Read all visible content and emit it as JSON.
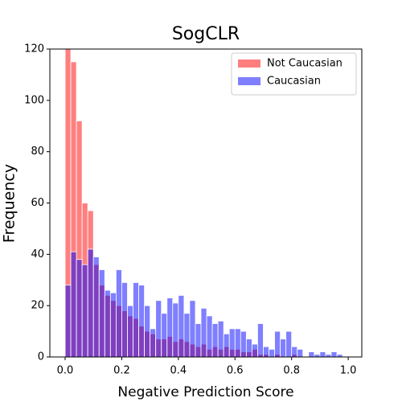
{
  "chart_data": {
    "type": "histogram",
    "title": "SogCLR",
    "xlabel": "Negative Prediction Score",
    "ylabel": "Frequency",
    "bins": [
      0,
      0.02,
      0.04,
      0.06,
      0.08,
      0.1,
      0.12,
      0.14,
      0.16,
      0.18,
      0.2,
      0.22,
      0.24,
      0.26,
      0.28,
      0.3,
      0.32,
      0.34,
      0.36,
      0.38,
      0.4,
      0.42,
      0.44,
      0.46,
      0.48,
      0.5,
      0.52,
      0.54,
      0.56,
      0.58,
      0.6,
      0.62,
      0.64,
      0.66,
      0.68,
      0.7,
      0.72,
      0.74,
      0.76,
      0.78,
      0.8,
      0.82,
      0.84,
      0.86,
      0.88,
      0.9,
      0.92,
      0.94,
      0.96,
      0.98,
      1
    ],
    "series": [
      {
        "name": "Not Caucasian",
        "color": "#ff0000",
        "opacity": 0.5,
        "values": [
          121,
          115,
          92,
          60,
          57,
          36,
          28,
          24,
          22,
          20,
          18,
          16,
          15,
          12,
          10,
          9,
          7,
          7,
          8,
          6,
          7,
          6,
          5,
          4,
          5,
          3,
          4,
          3,
          4,
          3,
          3,
          2,
          2,
          3,
          1,
          1,
          0,
          1,
          0,
          0,
          1,
          0,
          0,
          0,
          0,
          0,
          0,
          0,
          0,
          0
        ]
      },
      {
        "name": "Caucasian",
        "color": "#0000ff",
        "opacity": 0.5,
        "values": [
          28,
          41,
          38,
          36,
          42,
          39,
          34,
          26,
          25,
          34,
          29,
          20,
          29,
          28,
          20,
          11,
          22,
          17,
          23,
          21,
          24,
          17,
          22,
          13,
          19,
          16,
          13,
          14,
          9,
          11,
          11,
          10,
          7,
          5,
          13,
          4,
          3,
          10,
          7,
          10,
          4,
          3,
          0,
          2,
          1,
          2,
          1,
          2,
          1,
          0
        ]
      }
    ],
    "xlim": [
      -0.054,
      1.048
    ],
    "ylim": [
      0,
      120
    ],
    "xticks": [
      {
        "value": 0,
        "label": "0.0"
      },
      {
        "value": 0.2,
        "label": "0.2"
      },
      {
        "value": 0.4,
        "label": "0.4"
      },
      {
        "value": 0.6,
        "label": "0.6"
      },
      {
        "value": 0.8,
        "label": "0.8"
      },
      {
        "value": 1,
        "label": "1.0"
      }
    ],
    "yticks": [
      0,
      20,
      40,
      60,
      80,
      100,
      120
    ],
    "legend": "upper right"
  }
}
